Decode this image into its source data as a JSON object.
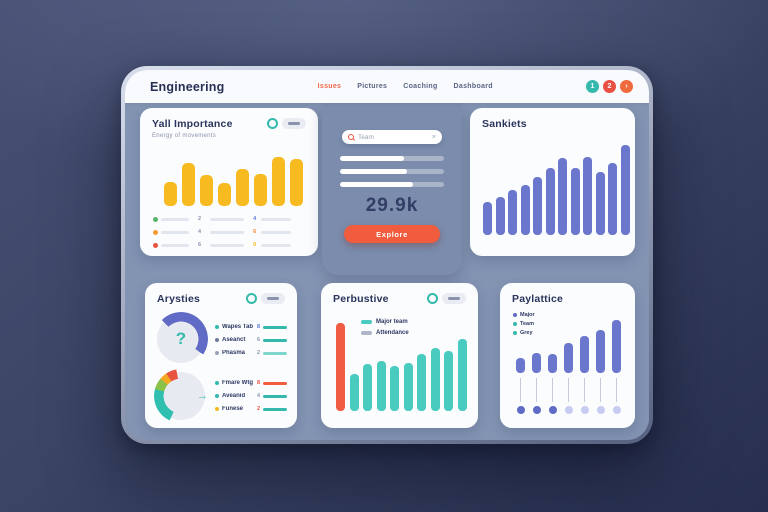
{
  "header": {
    "title": "Engineering",
    "nav": [
      {
        "label": "Issues",
        "active": true
      },
      {
        "label": "Pictures",
        "active": false
      },
      {
        "label": "Coaching",
        "active": false
      },
      {
        "label": "Dashboard",
        "active": false
      }
    ],
    "actions": [
      {
        "name": "action-1",
        "glyph": "1",
        "color": "#35b9ac"
      },
      {
        "name": "action-2",
        "glyph": "2",
        "color": "#e94f43"
      },
      {
        "name": "action-3",
        "glyph": "›",
        "color": "#ee6a3c"
      }
    ]
  },
  "panels": {
    "importance": {
      "title": "Yall Importance",
      "subtitle": "Energy of movements",
      "rows": [
        {
          "dot": "#56b567",
          "num": "2",
          "num2": "4",
          "num2_color": "#5a79d6"
        },
        {
          "dot": "#f59b31",
          "num": "4",
          "num2": "6",
          "num2_color": "#f08a3c"
        },
        {
          "dot": "#e8533f",
          "num": "6",
          "num2": "0",
          "num2_color": "#f5b821"
        }
      ]
    },
    "search_card": {
      "search_placeholder": "Team",
      "clear_glyph": "×",
      "progress": [
        62,
        64,
        70
      ],
      "metric": "29.9k",
      "button_label": "Explore"
    },
    "sankiets": {
      "title": "Sankiets"
    },
    "arysties": {
      "title": "Arysties",
      "groups": [
        {
          "rows": [
            {
              "dot": "#35b9ac",
              "label": "Wapes Tab",
              "num": "8",
              "num_color": "#5a79d6",
              "line": "#35b9ac"
            },
            {
              "dot": "#6f7a96",
              "label": "Aseanct",
              "num": "6",
              "num_color": "#8a93ad",
              "line": "#35b9ac"
            },
            {
              "dot": "#9aa3b8",
              "label": "Phasma",
              "num": "2",
              "num_color": "#8a93ad",
              "line": "#7fd6cc"
            }
          ]
        },
        {
          "rows": [
            {
              "dot": "#35b9ac",
              "label": "Fmare Wtg",
              "num": "8",
              "num_color": "#e8533f",
              "line": "#f05c3d"
            },
            {
              "dot": "#35b9ac",
              "label": "Aveanid",
              "num": "4",
              "num_color": "#8a93ad",
              "line": "#35b9ac"
            },
            {
              "dot": "#f5b821",
              "label": "Funese",
              "num": "2",
              "num_color": "#e8533f",
              "line": "#35b9ac"
            }
          ]
        }
      ]
    },
    "perbustive": {
      "title": "Perbustive",
      "legend": [
        {
          "label": "Major team",
          "color": "#49cbc0"
        },
        {
          "label": "Attendance",
          "color": "#aeb6c8"
        }
      ]
    },
    "paylattice": {
      "title": "Paylattice",
      "legend": [
        {
          "label": "Major",
          "color": "#5f6bc5"
        },
        {
          "label": "Team",
          "color": "#35b9ac"
        },
        {
          "label": "Grey",
          "color": "#35b9ac"
        }
      ]
    }
  },
  "chart_data": [
    {
      "id": "importance-bars",
      "type": "bar",
      "panel": "Yall Importance",
      "values": [
        24,
        43,
        31,
        23,
        37,
        32,
        49,
        47
      ],
      "color": "#f7bb21",
      "unit": "px-height"
    },
    {
      "id": "sankiets-bars",
      "type": "bar",
      "panel": "Sankiets",
      "values": [
        33,
        38,
        45,
        50,
        58,
        67,
        77,
        67,
        78,
        63,
        72,
        90
      ],
      "color": "#6b77cc",
      "unit": "px-height"
    },
    {
      "id": "perbustive-bars",
      "type": "bar",
      "panel": "Perbustive",
      "highlight_value": 88,
      "highlight_color": "#f05c44",
      "values": [
        37,
        47,
        50,
        45,
        48,
        57,
        63,
        60,
        72
      ],
      "color": "#49cbc0",
      "unit": "px-height"
    },
    {
      "id": "paylattice-lollipop",
      "type": "bar-lollipop",
      "panel": "Paylattice",
      "values": [
        15,
        20,
        19,
        30,
        37,
        43,
        53
      ],
      "color": "#6b77cc",
      "dot_colors": [
        "#5f6bc5",
        "#5f6bc5",
        "#5f6bc5",
        "#c7cdf0",
        "#c7cdf0",
        "#c7cdf0",
        "#c7cdf0"
      ],
      "unit": "px-height"
    },
    {
      "id": "donut-top",
      "type": "donut",
      "glyph": "?",
      "glyph_color": "#35b9ac",
      "segments": [
        {
          "from": 315,
          "to": 360,
          "color": "#5f6bc5"
        },
        {
          "from": 0,
          "to": 125,
          "color": "#5f6bc5"
        }
      ]
    },
    {
      "id": "donut-bottom",
      "type": "donut",
      "glyph": "→",
      "glyph_color": "#35b9ac",
      "segments": [
        {
          "from": 205,
          "to": 285,
          "color": "#2fbfae"
        },
        {
          "from": 285,
          "to": 310,
          "color": "#8bc24a"
        },
        {
          "from": 310,
          "to": 327,
          "color": "#f5a623"
        },
        {
          "from": 327,
          "to": 350,
          "color": "#e8533f"
        }
      ]
    }
  ],
  "colors": {
    "background_top": "#475174",
    "background_bottom": "#272e4f",
    "frame": "#cdd6e8",
    "header_bg": "#f8fafd",
    "content_bg": "#8394b3",
    "mid_card_bg": "#7b8cad",
    "panel_bg": "#fbfcfe",
    "accent_orange": "#f05c3d",
    "teal": "#35b9ac",
    "yellow": "#f7bb21",
    "indigo": "#6b77cc",
    "navy_text": "#2a345c",
    "placeholder_line": "#e1e5ee"
  }
}
